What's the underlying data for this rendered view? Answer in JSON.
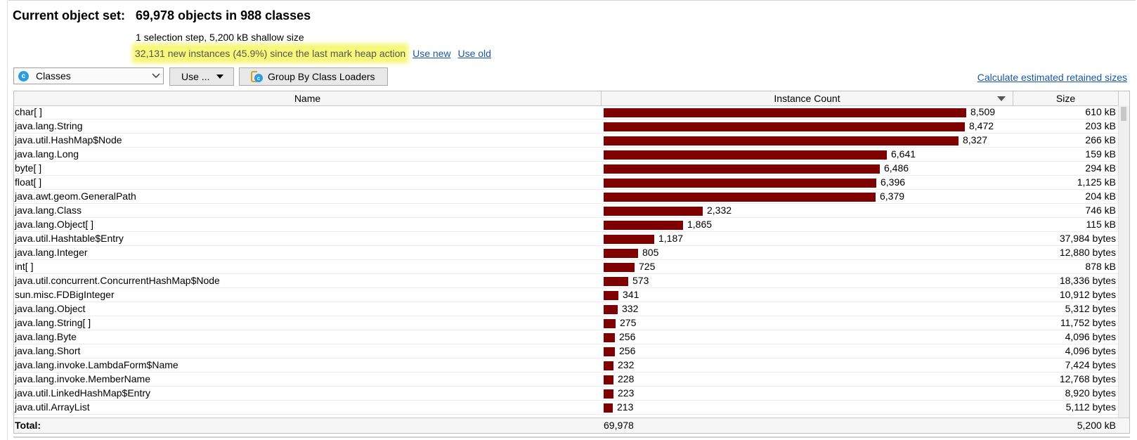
{
  "header": {
    "label": "Current object set:",
    "summary": "69,978 objects in 988 classes",
    "selection_info": "1 selection step, 5,200 kB shallow size",
    "new_instances": "32,131 new instances (45.9%) since the last mark heap action",
    "use_new_label": "Use new",
    "use_old_label": "Use old"
  },
  "toolbar": {
    "view_combo": {
      "icon": "class-icon",
      "value": "Classes"
    },
    "use_button_label": "Use ...",
    "group_button_label": "Group By Class Loaders",
    "calc_link_label": "Calculate estimated retained sizes"
  },
  "table": {
    "columns": {
      "name": "Name",
      "count": "Instance Count",
      "size": "Size"
    },
    "max_count": 8509,
    "rows": [
      {
        "name": "char[ ]",
        "count": 8509,
        "count_label": "8,509",
        "size": "610 kB"
      },
      {
        "name": "java.lang.String",
        "count": 8472,
        "count_label": "8,472",
        "size": "203 kB"
      },
      {
        "name": "java.util.HashMap$Node",
        "count": 8327,
        "count_label": "8,327",
        "size": "266 kB"
      },
      {
        "name": "java.lang.Long",
        "count": 6641,
        "count_label": "6,641",
        "size": "159 kB"
      },
      {
        "name": "byte[ ]",
        "count": 6486,
        "count_label": "6,486",
        "size": "294 kB"
      },
      {
        "name": "float[ ]",
        "count": 6396,
        "count_label": "6,396",
        "size": "1,125 kB"
      },
      {
        "name": "java.awt.geom.GeneralPath",
        "count": 6379,
        "count_label": "6,379",
        "size": "204 kB"
      },
      {
        "name": "java.lang.Class",
        "count": 2332,
        "count_label": "2,332",
        "size": "746 kB"
      },
      {
        "name": "java.lang.Object[ ]",
        "count": 1865,
        "count_label": "1,865",
        "size": "115 kB"
      },
      {
        "name": "java.util.Hashtable$Entry",
        "count": 1187,
        "count_label": "1,187",
        "size": "37,984 bytes"
      },
      {
        "name": "java.lang.Integer",
        "count": 805,
        "count_label": "805",
        "size": "12,880 bytes"
      },
      {
        "name": "int[ ]",
        "count": 725,
        "count_label": "725",
        "size": "878 kB"
      },
      {
        "name": "java.util.concurrent.ConcurrentHashMap$Node",
        "count": 573,
        "count_label": "573",
        "size": "18,336 bytes"
      },
      {
        "name": "sun.misc.FDBigInteger",
        "count": 341,
        "count_label": "341",
        "size": "10,912 bytes"
      },
      {
        "name": "java.lang.Object",
        "count": 332,
        "count_label": "332",
        "size": "5,312 bytes"
      },
      {
        "name": "java.lang.String[ ]",
        "count": 275,
        "count_label": "275",
        "size": "11,752 bytes"
      },
      {
        "name": "java.lang.Byte",
        "count": 256,
        "count_label": "256",
        "size": "4,096 bytes"
      },
      {
        "name": "java.lang.Short",
        "count": 256,
        "count_label": "256",
        "size": "4,096 bytes"
      },
      {
        "name": "java.lang.invoke.LambdaForm$Name",
        "count": 232,
        "count_label": "232",
        "size": "7,424 bytes"
      },
      {
        "name": "java.lang.invoke.MemberName",
        "count": 228,
        "count_label": "228",
        "size": "12,768 bytes"
      },
      {
        "name": "java.util.LinkedHashMap$Entry",
        "count": 223,
        "count_label": "223",
        "size": "8,920 bytes"
      },
      {
        "name": "java.util.ArrayList",
        "count": 213,
        "count_label": "213",
        "size": "5,112 bytes"
      }
    ],
    "total": {
      "label": "Total:",
      "count": "69,978",
      "size": "5,200 kB"
    }
  },
  "colors": {
    "bar": "#7e0000",
    "link": "#1a56a8",
    "highlight": "#f7f77a"
  }
}
